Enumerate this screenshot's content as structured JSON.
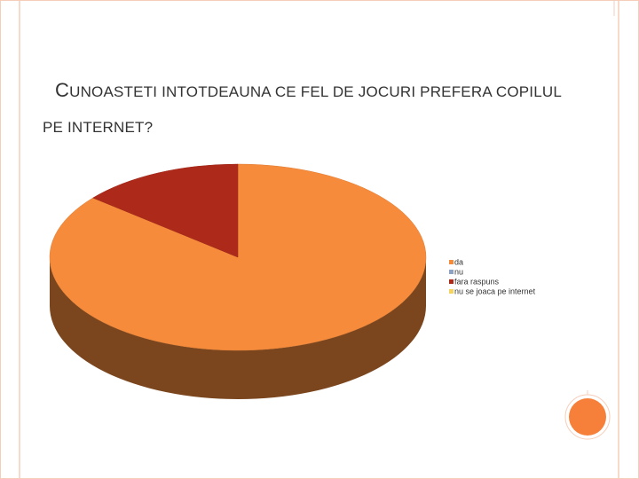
{
  "chart_data": {
    "type": "pie3d",
    "title": "CUNOASTETI INTOTDEAUNA CE FEL DE JOCURI PREFERA COPILUL PE INTERNET?",
    "categories": [
      "da",
      "nu",
      "fara raspuns",
      "nu se joaca pe internet"
    ],
    "values": [
      86,
      0,
      14,
      0
    ],
    "colors": [
      "#f68b3b",
      "#8ea2c4",
      "#ad2a1b",
      "#f4d35e"
    ],
    "legend": "right"
  }
}
